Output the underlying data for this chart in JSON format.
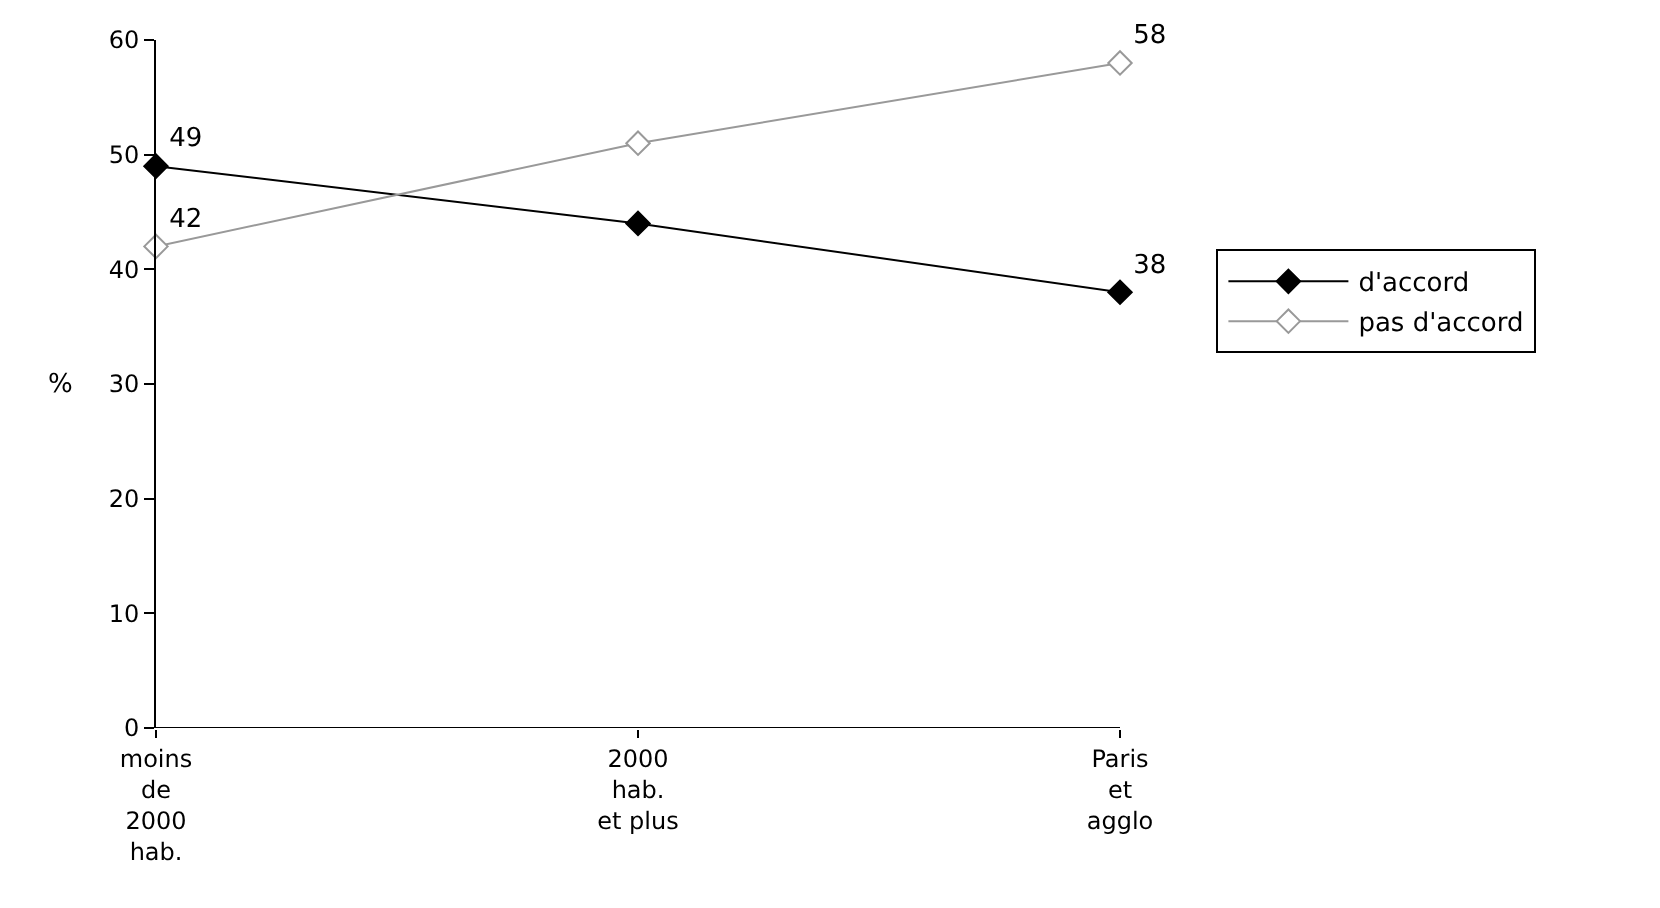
{
  "chart_data": {
    "type": "line",
    "ylabel": "%",
    "categories": [
      "moins\nde\n2000\nhab.",
      "2000\nhab.\net plus",
      "Paris\net\nagglo"
    ],
    "series": [
      {
        "name": "d'accord",
        "color": "#000000",
        "values": [
          49,
          44,
          38
        ],
        "value_labels": [
          "49",
          null,
          "38"
        ]
      },
      {
        "name": "pas d'accord",
        "color": "#999999",
        "values": [
          42,
          51,
          58
        ],
        "value_labels": [
          "42",
          null,
          "58"
        ]
      }
    ],
    "ylim": [
      0,
      60
    ],
    "yticks": [
      0,
      10,
      20,
      30,
      40,
      50,
      60
    ],
    "grid": false,
    "legend": "right",
    "marker": "diamond",
    "line_style": "solid"
  }
}
